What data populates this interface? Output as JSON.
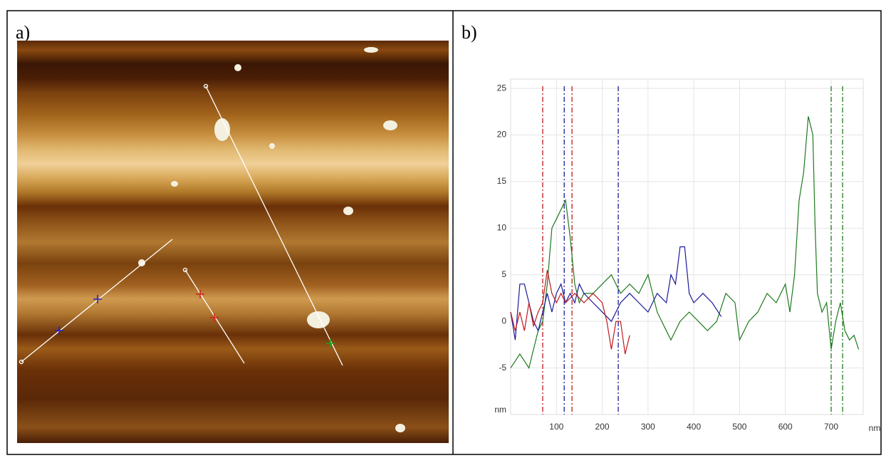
{
  "panels": [
    "a)",
    "b)"
  ],
  "chart_data": {
    "type": "line",
    "y_label": "nm",
    "x_label": "nm",
    "xlim": [
      0,
      770
    ],
    "ylim": [
      -10,
      26
    ],
    "xticks": [
      100,
      200,
      300,
      400,
      500,
      600,
      700
    ],
    "yticks": [
      -5,
      0,
      5,
      10,
      15,
      20,
      25
    ],
    "grid": true,
    "series": [
      {
        "color": "#1e7a1e",
        "x": [
          0,
          20,
          40,
          50,
          60,
          70,
          80,
          90,
          100,
          110,
          120,
          130,
          140,
          150,
          160,
          180,
          200,
          220,
          240,
          260,
          280,
          300,
          320,
          340,
          350,
          370,
          390,
          410,
          430,
          450,
          470,
          490,
          500,
          520,
          540,
          560,
          580,
          600,
          610,
          620,
          630,
          640,
          650,
          660,
          665,
          670,
          680,
          690,
          700,
          710,
          720,
          730,
          740,
          750,
          760
        ],
        "values": [
          -5,
          -3.5,
          -5,
          -3,
          -1,
          0,
          4,
          10,
          11,
          12,
          13,
          9,
          4,
          2,
          3,
          3,
          4,
          5,
          3,
          4,
          3,
          5,
          1,
          -1,
          -2,
          0,
          1,
          0,
          -1,
          0,
          3,
          2,
          -2,
          0,
          1,
          3,
          2,
          4,
          1,
          5,
          13,
          16,
          22,
          20,
          10,
          3,
          1,
          2,
          -3,
          0,
          2,
          -1,
          -2,
          -1.5,
          -3
        ]
      },
      {
        "color": "#1a1a9a",
        "x": [
          0,
          10,
          20,
          30,
          40,
          50,
          60,
          70,
          80,
          90,
          100,
          110,
          120,
          130,
          140,
          150,
          160,
          180,
          200,
          220,
          240,
          260,
          280,
          300,
          320,
          340,
          350,
          360,
          370,
          380,
          390,
          400,
          420,
          440,
          460
        ],
        "values": [
          1,
          -2,
          4,
          4,
          2,
          0,
          -1,
          1,
          3,
          1,
          3,
          4,
          2,
          3,
          2,
          4,
          3,
          2,
          1,
          0,
          2,
          3,
          2,
          1,
          3,
          2,
          5,
          4,
          8,
          8,
          3,
          2,
          3,
          2,
          0.5
        ]
      },
      {
        "color": "#c0181c",
        "x": [
          0,
          10,
          20,
          30,
          40,
          50,
          60,
          70,
          80,
          90,
          100,
          110,
          120,
          140,
          160,
          180,
          200,
          210,
          220,
          230,
          240,
          250,
          260
        ],
        "values": [
          1,
          -1,
          1,
          -1,
          2,
          -0.5,
          1,
          2,
          5.5,
          3,
          2,
          3,
          2,
          3,
          2,
          3,
          2,
          0,
          -3,
          0,
          0,
          -3.5,
          -1.5
        ]
      }
    ],
    "vlines": [
      {
        "x": 70,
        "color": "#c0181c"
      },
      {
        "x": 134,
        "color": "#c0181c"
      },
      {
        "x": 117,
        "color": "#1a1a9a"
      },
      {
        "x": 235,
        "color": "#1a1a9a"
      },
      {
        "x": 700,
        "color": "#1e7a1e"
      },
      {
        "x": 725,
        "color": "#1e7a1e"
      }
    ]
  }
}
